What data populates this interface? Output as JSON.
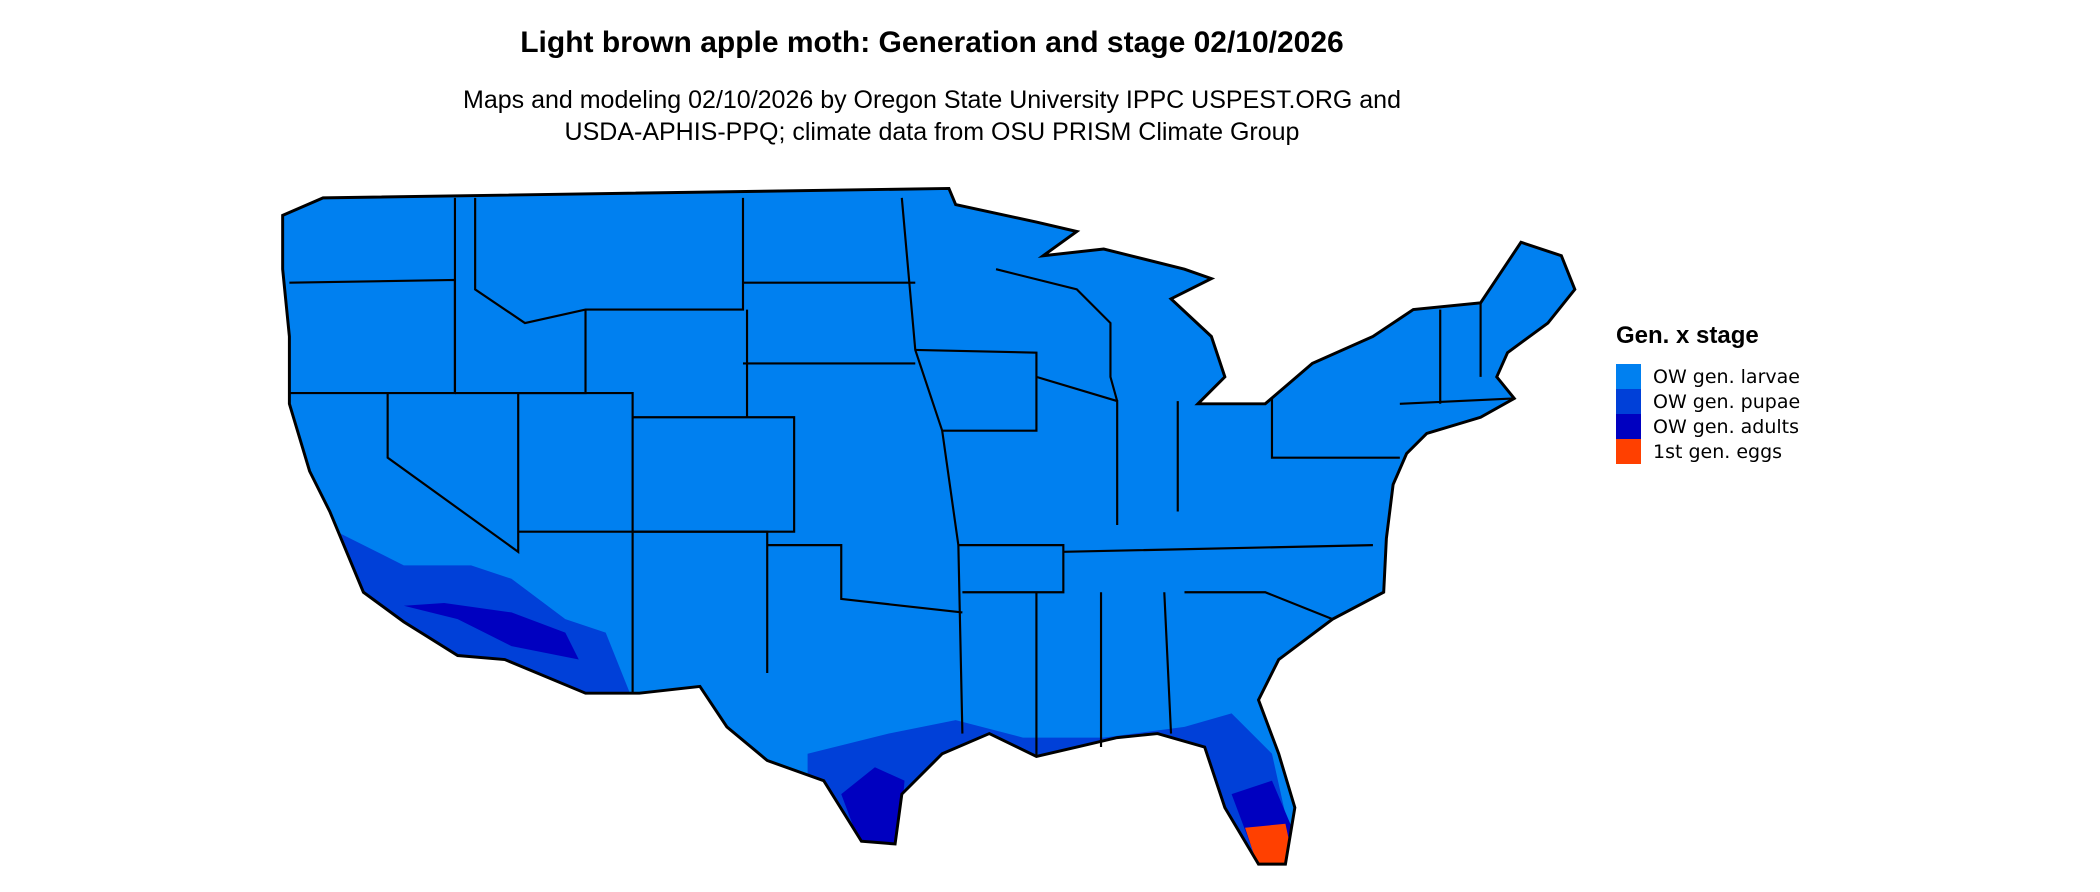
{
  "title": "Light brown apple moth: Generation and stage 02/10/2026",
  "subtitle_line1": "Maps and modeling 02/10/2026 by Oregon State University IPPC USPEST.ORG and",
  "subtitle_line2": "USDA-APHIS-PPQ; climate data from OSU PRISM Climate Group",
  "legend": {
    "title": "Gen. x stage",
    "items": [
      {
        "label": "OW gen. larvae",
        "color": "#0080F0"
      },
      {
        "label": "OW gen. pupae",
        "color": "#0040D8"
      },
      {
        "label": "OW gen. adults",
        "color": "#0000C0"
      },
      {
        "label": "1st gen. eggs",
        "color": "#FF4000"
      }
    ]
  },
  "map": {
    "region": "Contiguous United States",
    "border_color": "#000000"
  }
}
